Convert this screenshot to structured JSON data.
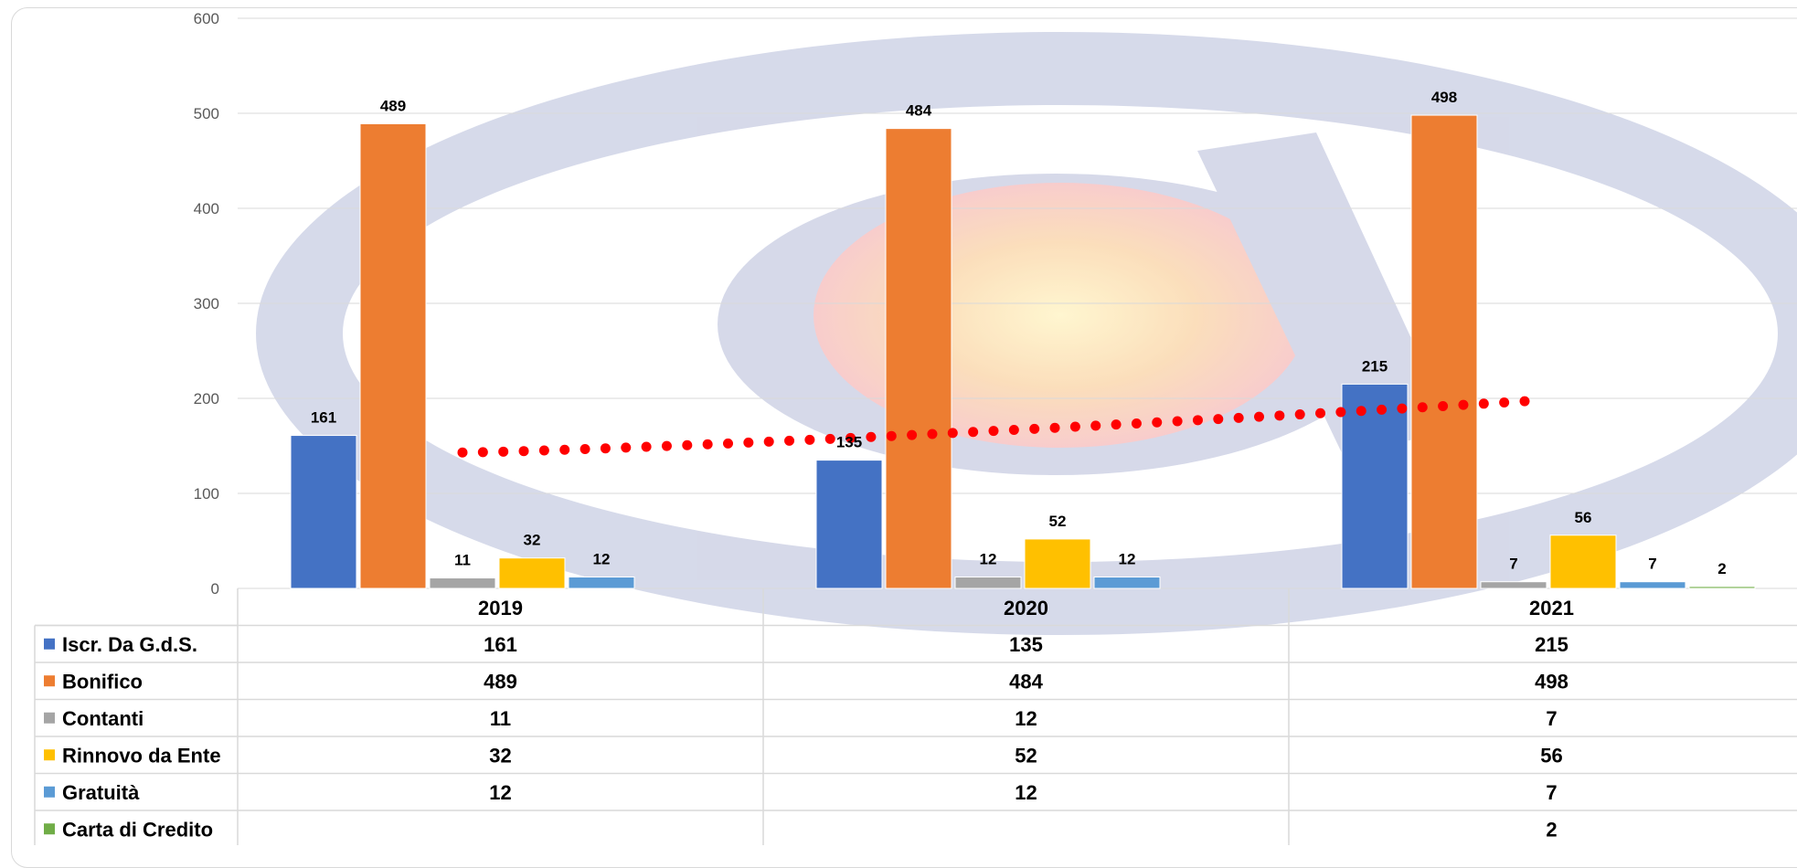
{
  "chart_data": {
    "type": "bar",
    "categories": [
      "2019",
      "2020",
      "2021"
    ],
    "series": [
      {
        "name": "Iscr. Da G.d.S.",
        "color": "#4472c4",
        "values": [
          161,
          135,
          215
        ]
      },
      {
        "name": "Bonifico",
        "color": "#ed7d31",
        "values": [
          489,
          484,
          498
        ]
      },
      {
        "name": "Contanti",
        "color": "#a5a5a5",
        "values": [
          11,
          12,
          7
        ]
      },
      {
        "name": "Rinnovo da Ente",
        "color": "#ffc000",
        "values": [
          32,
          52,
          56
        ]
      },
      {
        "name": "Gratuità",
        "color": "#5b9bd5",
        "values": [
          12,
          12,
          7
        ]
      },
      {
        "name": "Carta di Credito",
        "color": "#70ad47",
        "values": [
          null,
          null,
          2
        ]
      }
    ],
    "trendline": {
      "style": "dotted",
      "color": "#ff0000",
      "x_range": [
        "2019",
        "2021"
      ],
      "y_start": 143,
      "y_end": 197
    },
    "ylim": [
      0,
      600
    ],
    "yticks": [
      0,
      100,
      200,
      300,
      400,
      500,
      600
    ],
    "grid": true,
    "legend": "data table below chart",
    "data_table": true,
    "watermark": "circular logo"
  }
}
